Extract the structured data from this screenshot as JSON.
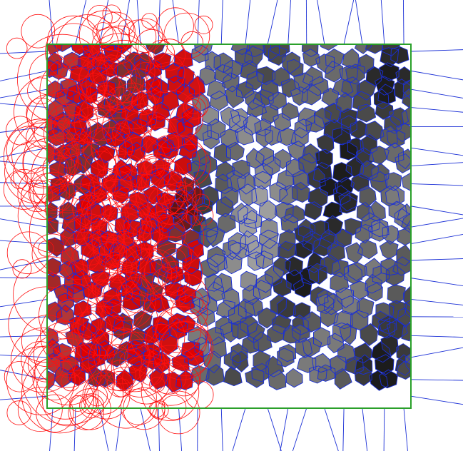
{
  "diagram": {
    "description_type": "voronoi-tessellation-with-circle-overlay",
    "colors": {
      "background": "#ffffff",
      "cell_edges": "#1a2fd6",
      "circles": "#ff1010",
      "region_border": "#2aa02a",
      "cell_fill_dark": "#1c1c1c",
      "cell_fill_mid": "#555555",
      "cell_fill_light": "#b8b8b8",
      "red_overlay_fill": "#e00000"
    },
    "grayscale_levels": [
      "#1c1c1c",
      "#2a2a2a",
      "#3a3a3a",
      "#4a4a4a",
      "#5a5a5a",
      "#6a6a6a",
      "#7a7a7a",
      "#8c8c8c",
      "#9e9e9e",
      "#b0b0b0",
      "#c2c2c2"
    ],
    "legend": []
  }
}
